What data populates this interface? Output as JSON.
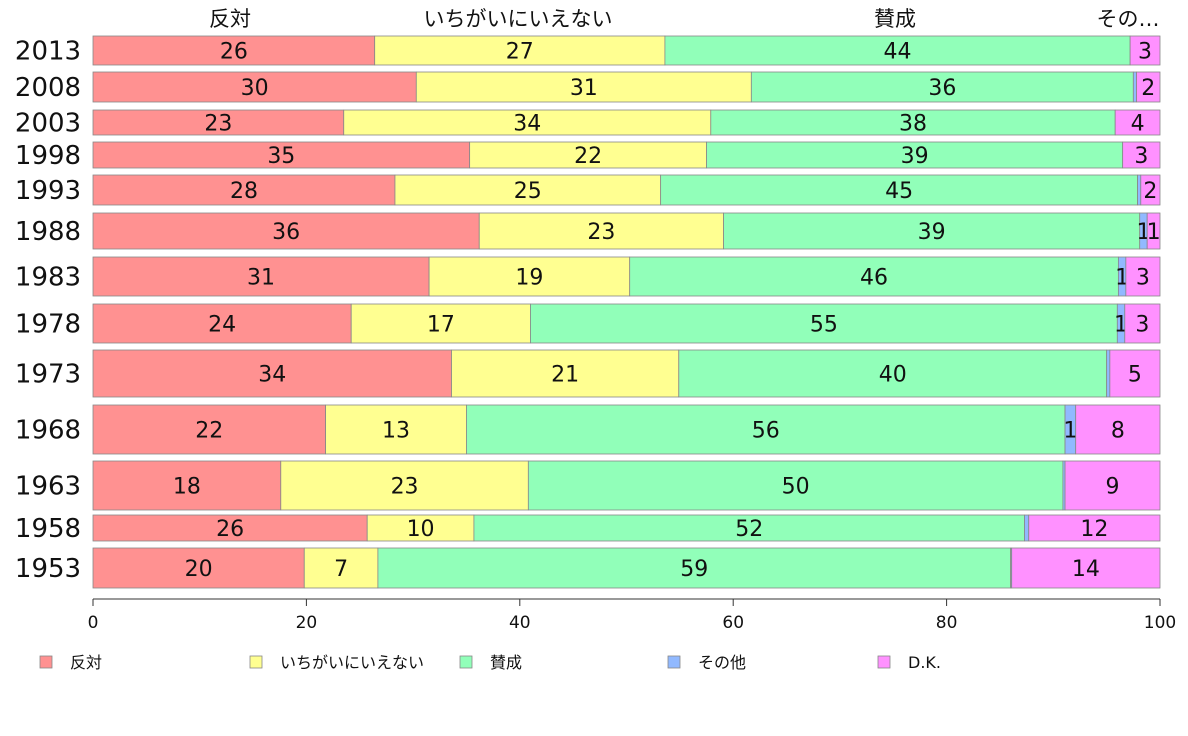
{
  "chart_data": {
    "type": "bar",
    "orientation": "horizontal",
    "stacked": true,
    "title": "",
    "xlabel": "",
    "ylabel": "",
    "xlim": [
      0,
      100
    ],
    "x_ticks": [
      0,
      20,
      40,
      60,
      80,
      100
    ],
    "legend_position": "bottom",
    "top_labels": [
      "反対",
      "いちがいにいえない",
      "賛成",
      "その…"
    ],
    "categories": [
      "2013",
      "2008",
      "2003",
      "1998",
      "1993",
      "1988",
      "1983",
      "1978",
      "1973",
      "1968",
      "1963",
      "1958",
      "1953"
    ],
    "series": [
      {
        "name": "反対",
        "color": "#ff9191",
        "values": [
          26.4,
          30.3,
          23.5,
          35.3,
          28.3,
          36.2,
          31.5,
          24.2,
          33.6,
          21.8,
          17.6,
          25.7,
          19.8
        ]
      },
      {
        "name": "いちがいにいえない",
        "color": "#ffff91",
        "values": [
          27.2,
          31.4,
          34.4,
          22.2,
          24.9,
          22.9,
          18.8,
          16.8,
          21.3,
          13.2,
          23.2,
          10.0,
          6.9
        ]
      },
      {
        "name": "賛成",
        "color": "#91ffb9",
        "values": [
          43.6,
          35.8,
          37.9,
          39.0,
          44.7,
          39.0,
          45.8,
          55.0,
          40.1,
          56.1,
          50.1,
          51.6,
          59.3
        ]
      },
      {
        "name": "その他",
        "color": "#91b9ff",
        "values": [
          0.0,
          0.3,
          0.0,
          0.0,
          0.3,
          0.7,
          0.7,
          0.7,
          0.3,
          1.0,
          0.2,
          0.4,
          0.1
        ]
      },
      {
        "name": "D.K.",
        "color": "#ff91ff",
        "values": [
          2.8,
          2.2,
          4.2,
          3.5,
          1.8,
          1.2,
          3.2,
          3.3,
          4.7,
          7.9,
          8.9,
          12.3,
          13.9
        ]
      }
    ],
    "data_labels": [
      [
        "26",
        "27",
        "44",
        "",
        "3"
      ],
      [
        "30",
        "31",
        "36",
        "",
        "2"
      ],
      [
        "23",
        "34",
        "38",
        "",
        "4"
      ],
      [
        "35",
        "22",
        "39",
        "",
        "3"
      ],
      [
        "28",
        "25",
        "45",
        "",
        "2"
      ],
      [
        "36",
        "23",
        "39",
        "1",
        "1"
      ],
      [
        "31",
        "19",
        "46",
        "1",
        "3"
      ],
      [
        "24",
        "17",
        "55",
        "1",
        "3"
      ],
      [
        "34",
        "21",
        "40",
        "",
        "5"
      ],
      [
        "22",
        "13",
        "56",
        "1",
        "8"
      ],
      [
        "18",
        "23",
        "50",
        "",
        "9"
      ],
      [
        "26",
        "10",
        "52",
        "",
        "12"
      ],
      [
        "20",
        "7",
        "59",
        "",
        "14"
      ]
    ]
  }
}
